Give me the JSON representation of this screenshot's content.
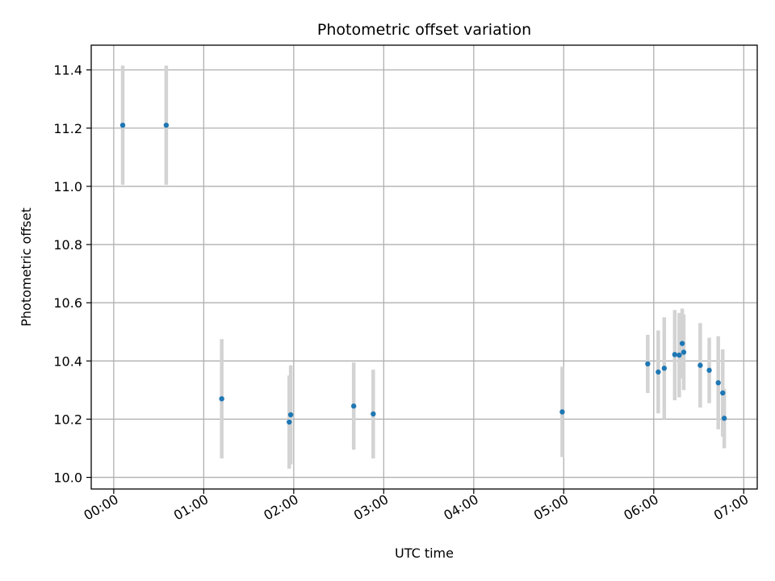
{
  "chart_data": {
    "type": "scatter",
    "title": "Photometric offset variation",
    "xlabel": "UTC time",
    "ylabel": "Photometric offset",
    "xlim": [
      "23:45",
      "07:09"
    ],
    "ylim": [
      9.96,
      11.485
    ],
    "x_ticks": [
      "00:00",
      "01:00",
      "02:00",
      "03:00",
      "04:00",
      "05:00",
      "06:00",
      "07:00"
    ],
    "y_ticks": [
      "10.0",
      "10.2",
      "10.4",
      "10.6",
      "10.8",
      "11.0",
      "11.2",
      "11.4"
    ],
    "grid": true,
    "point_color": "#1f77b4",
    "errorbar_color": "#d3d3d3",
    "points": [
      {
        "x": "00:06",
        "y": 11.21,
        "low": 11.005,
        "high": 11.415
      },
      {
        "x": "00:35",
        "y": 11.21,
        "low": 11.005,
        "high": 11.415
      },
      {
        "x": "01:12",
        "y": 10.27,
        "low": 10.065,
        "high": 10.475
      },
      {
        "x": "01:57",
        "y": 10.19,
        "low": 10.03,
        "high": 10.35
      },
      {
        "x": "01:58",
        "y": 10.215,
        "low": 10.045,
        "high": 10.385
      },
      {
        "x": "02:40",
        "y": 10.245,
        "low": 10.095,
        "high": 10.395
      },
      {
        "x": "02:53",
        "y": 10.218,
        "low": 10.065,
        "high": 10.37
      },
      {
        "x": "04:59",
        "y": 10.225,
        "low": 10.07,
        "high": 10.38
      },
      {
        "x": "05:56",
        "y": 10.39,
        "low": 10.29,
        "high": 10.49
      },
      {
        "x": "06:03",
        "y": 10.362,
        "low": 10.22,
        "high": 10.505
      },
      {
        "x": "06:07",
        "y": 10.375,
        "low": 10.2,
        "high": 10.55
      },
      {
        "x": "06:14",
        "y": 10.422,
        "low": 10.265,
        "high": 10.575
      },
      {
        "x": "06:17",
        "y": 10.42,
        "low": 10.275,
        "high": 10.565
      },
      {
        "x": "06:19",
        "y": 10.46,
        "low": 10.34,
        "high": 10.58
      },
      {
        "x": "06:20",
        "y": 10.43,
        "low": 10.3,
        "high": 10.56
      },
      {
        "x": "06:31",
        "y": 10.385,
        "low": 10.24,
        "high": 10.53
      },
      {
        "x": "06:37",
        "y": 10.368,
        "low": 10.255,
        "high": 10.48
      },
      {
        "x": "06:43",
        "y": 10.325,
        "low": 10.165,
        "high": 10.485
      },
      {
        "x": "06:46",
        "y": 10.29,
        "low": 10.14,
        "high": 10.44
      },
      {
        "x": "06:47",
        "y": 10.203,
        "low": 10.1,
        "high": 10.305
      }
    ]
  }
}
